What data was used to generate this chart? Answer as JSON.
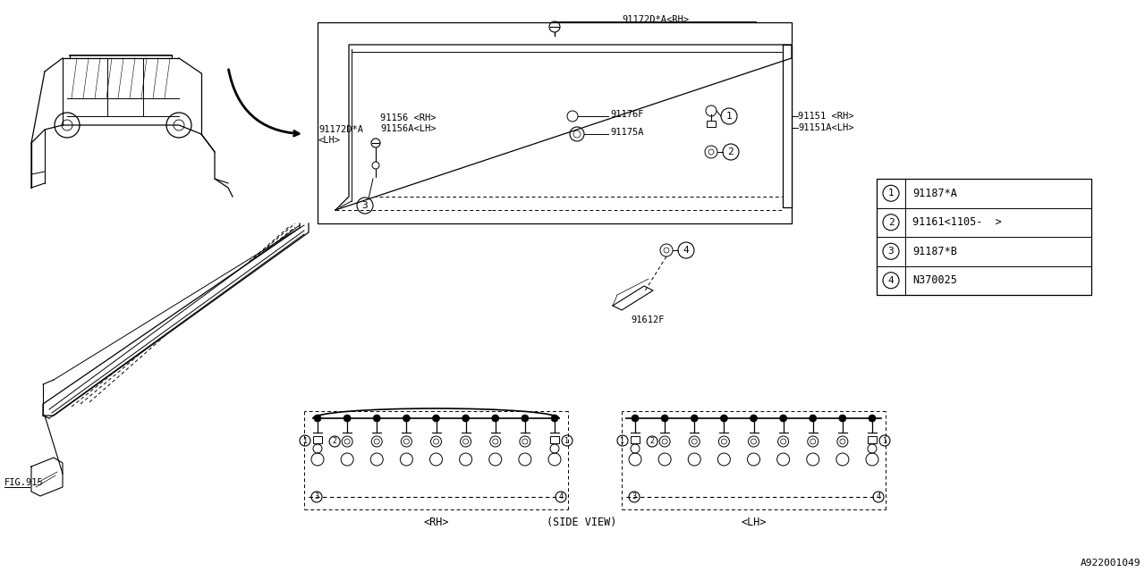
{
  "bg_color": "#ffffff",
  "line_color": "#000000",
  "part_numbers": {
    "91172D_A_RH": "91172D*A<RH>",
    "91172D_A_LH": "91172D*A",
    "91172D_A_LH2": "<LH>",
    "91156_RH": "91156 <RH>",
    "91156A_LH": "91156A<LH>",
    "91176F": "91176F",
    "91175A": "91175A",
    "91151_RH": "91151 <RH>",
    "91151A_LH": "91151A<LH>",
    "91612F": "91612F",
    "fig915": "FIG.915"
  },
  "legend": [
    {
      "num": "1",
      "part": "91187*A"
    },
    {
      "num": "2",
      "part": "91161<1105-  >"
    },
    {
      "num": "3",
      "part": "91187*B"
    },
    {
      "num": "4",
      "part": "N370025"
    }
  ],
  "bottom_labels": [
    "<RH>",
    "(SIDE VIEW)",
    "<LH>"
  ],
  "drawing_id": "A922001049"
}
